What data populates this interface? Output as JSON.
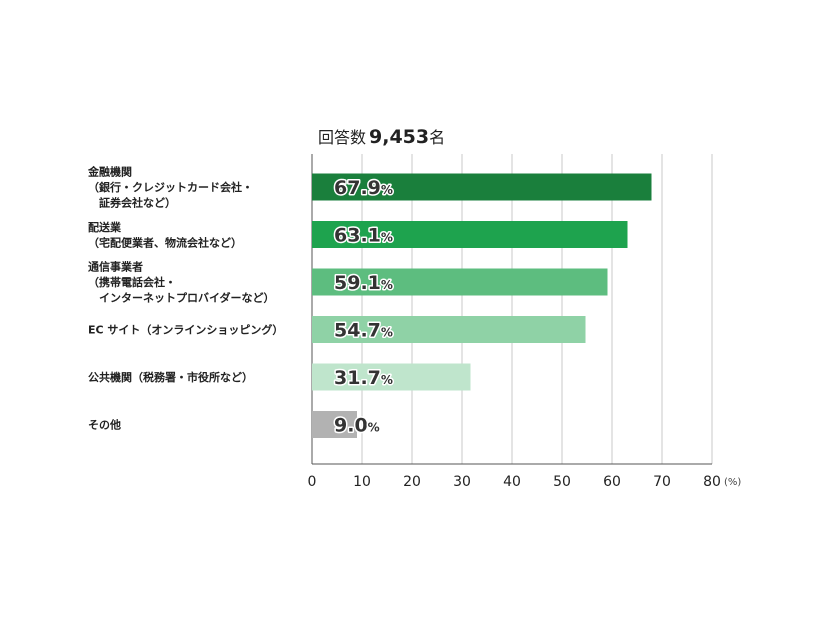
{
  "chart_data": {
    "type": "bar",
    "orientation": "horizontal",
    "respondents": {
      "prefix": "回答数",
      "count": "9,453",
      "suffix": "名"
    },
    "categories": [
      [
        "金融機関",
        "（銀行・クレジットカード会社・",
        "　証券会社など）"
      ],
      [
        "配送業",
        "（宅配便業者、物流会社など）"
      ],
      [
        "通信事業者",
        "（携帯電話会社・",
        "　インターネットプロバイダーなど）"
      ],
      [
        "EC サイト（オンラインショッピング）"
      ],
      [
        "公共機関（税務署・市役所など）"
      ],
      [
        "その他"
      ]
    ],
    "values": [
      67.9,
      63.1,
      59.1,
      54.7,
      31.7,
      9.0
    ],
    "value_labels": [
      "67.9",
      "63.1",
      "59.1",
      "54.7",
      "31.7",
      "9.0"
    ],
    "value_suffix": "%",
    "bar_colors": [
      "#1a7f3c",
      "#1ea34e",
      "#5dbd7f",
      "#8fd2a6",
      "#bfe5cc",
      "#b2b2b2"
    ],
    "xlim": [
      0,
      80
    ],
    "xticks": [
      0,
      10,
      20,
      30,
      40,
      50,
      60,
      70,
      80
    ],
    "x_unit": "(%)",
    "grid": true,
    "grid_color": "#c8c8c8"
  }
}
